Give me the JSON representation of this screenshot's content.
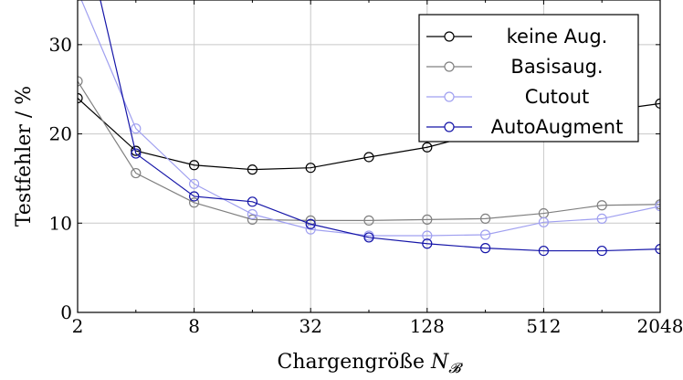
{
  "chart_data": {
    "type": "line",
    "xlabel": "Chargengröße",
    "xlabel_symbol": "N",
    "xlabel_subscript": "𝓑",
    "ylabel": "Testfehler / %",
    "xscale": "log2",
    "xlim": [
      2,
      2048
    ],
    "ylim": [
      0,
      35
    ],
    "xticks": [
      2,
      8,
      32,
      128,
      512,
      2048
    ],
    "xtick_labels": [
      "2",
      "8",
      "32",
      "128",
      "512",
      "2048"
    ],
    "yticks": [
      0,
      10,
      20,
      30
    ],
    "ytick_labels": [
      "0",
      "10",
      "20",
      "30"
    ],
    "grid": true,
    "legend_position": "top-right",
    "x": [
      2,
      4,
      8,
      16,
      32,
      64,
      128,
      256,
      512,
      1024,
      2048
    ],
    "series": [
      {
        "name": "keine Aug.",
        "color": "#000000",
        "values": [
          24.0,
          18.1,
          16.5,
          16.0,
          16.2,
          17.4,
          18.5,
          20.2,
          21.3,
          22.5,
          23.4
        ]
      },
      {
        "name": "Basisaug.",
        "color": "#808080",
        "values": [
          25.9,
          15.6,
          12.3,
          10.4,
          10.3,
          10.3,
          10.4,
          10.5,
          11.1,
          12.0,
          12.1
        ]
      },
      {
        "name": "Cutout",
        "color": "#a0a0f0",
        "values": [
          36.0,
          20.6,
          14.4,
          11.0,
          9.3,
          8.6,
          8.6,
          8.7,
          10.1,
          10.5,
          11.9
        ]
      },
      {
        "name": "AutoAugment",
        "color": "#1515a8",
        "values": [
          46.0,
          17.8,
          13.0,
          12.4,
          9.9,
          8.4,
          7.7,
          7.2,
          6.9,
          6.9,
          7.1
        ]
      }
    ]
  }
}
